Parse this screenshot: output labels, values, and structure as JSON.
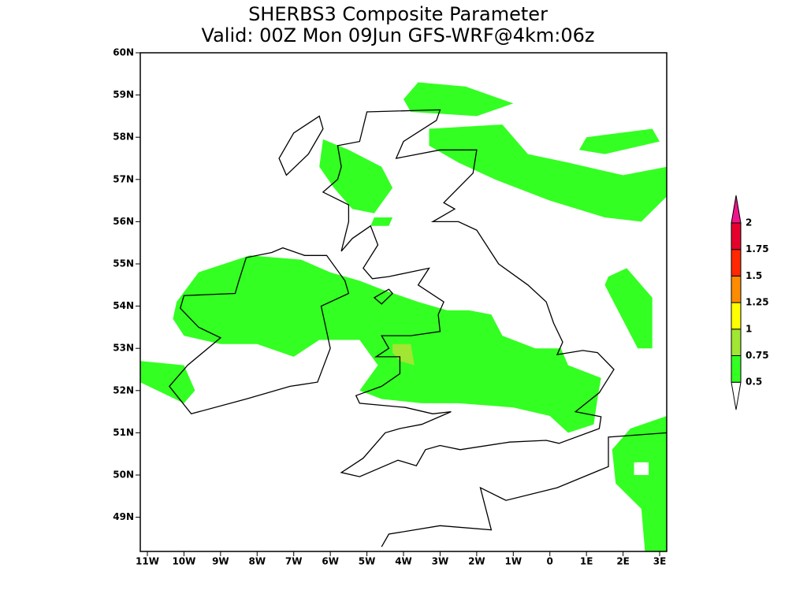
{
  "title": {
    "line1": "SHERBS3 Composite Parameter",
    "line2": "Valid: 00Z Mon 09Jun GFS-WRF@4km:06z"
  },
  "lat_labels": [
    "60N",
    "59N",
    "58N",
    "57N",
    "56N",
    "55N",
    "54N",
    "53N",
    "52N",
    "51N",
    "50N",
    "49N"
  ],
  "lon_labels": [
    "11W",
    "10W",
    "9W",
    "8W",
    "7W",
    "6W",
    "5W",
    "4W",
    "3W",
    "2W",
    "1W",
    "0",
    "1E",
    "2E",
    "3E"
  ],
  "legend": {
    "levels": [
      0.5,
      0.75,
      1,
      1.25,
      1.5,
      1.75,
      2
    ],
    "colors": [
      "#ffffff",
      "#33ff22",
      "#a0e632",
      "#ffff00",
      "#ff8c00",
      "#ff2800",
      "#e6002d",
      "#f0148c"
    ]
  }
}
